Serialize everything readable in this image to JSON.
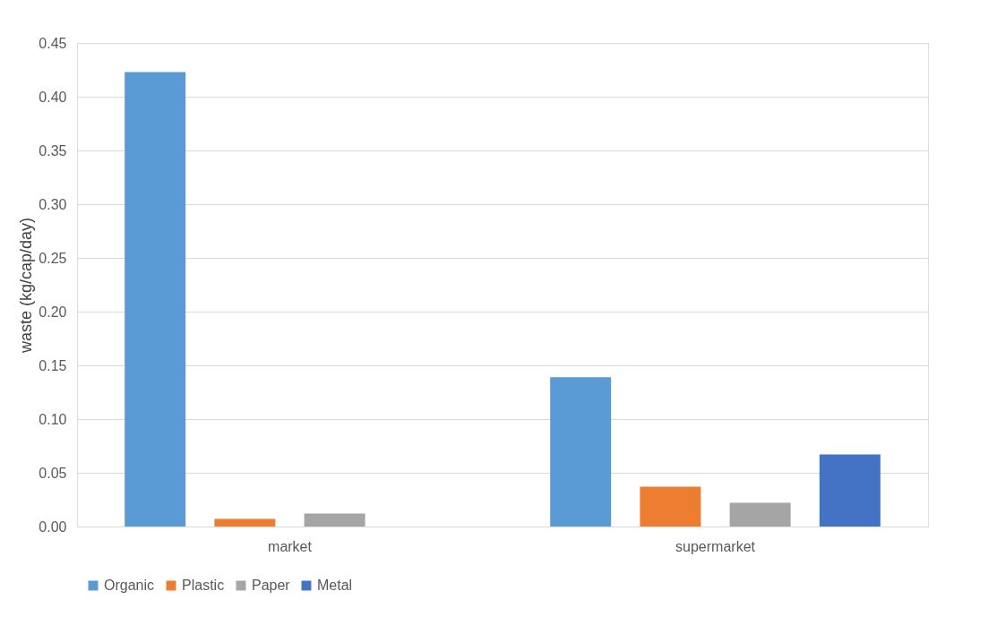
{
  "chart_data": {
    "type": "bar",
    "ylabel": "waste (kg/cap/day)",
    "categories": [
      "market",
      "supermarket"
    ],
    "series": [
      {
        "name": "Organic",
        "color": "#5b9bd5",
        "values": [
          0.423,
          0.139
        ]
      },
      {
        "name": "Plastic",
        "color": "#ed7d31",
        "values": [
          0.007,
          0.037
        ]
      },
      {
        "name": "Paper",
        "color": "#a5a5a5",
        "values": [
          0.012,
          0.022
        ]
      },
      {
        "name": "Metal",
        "color": "#4472c4",
        "values": [
          null,
          0.067
        ]
      }
    ],
    "ylim": [
      0,
      0.45
    ],
    "yticks": [
      {
        "value": 0,
        "label": "0.00"
      },
      {
        "value": 0.05,
        "label": "0.05"
      },
      {
        "value": 0.1,
        "label": "0.10"
      },
      {
        "value": 0.15,
        "label": "0.15"
      },
      {
        "value": 0.2,
        "label": "0.20"
      },
      {
        "value": 0.25,
        "label": "0.25"
      },
      {
        "value": 0.3,
        "label": "0.30"
      },
      {
        "value": 0.35,
        "label": "0.35"
      },
      {
        "value": 0.4,
        "label": "0.40"
      },
      {
        "value": 0.45,
        "label": "0.45"
      }
    ],
    "grid": "y",
    "legend": "bottom"
  }
}
